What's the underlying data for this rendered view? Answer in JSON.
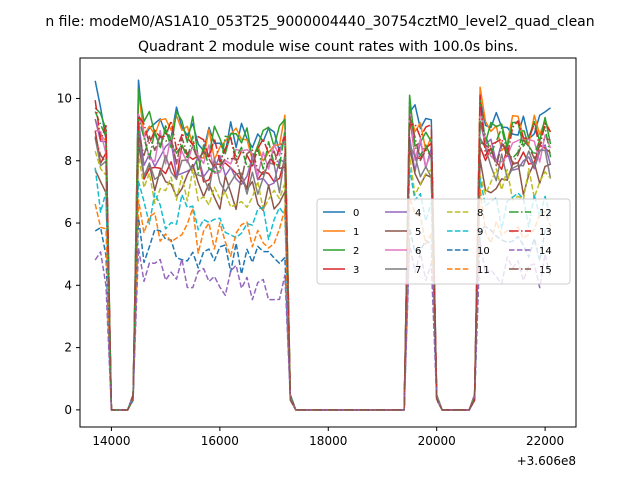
{
  "chart_data": {
    "type": "line",
    "suptitle": "n file: modeM0/AS1A10_053T25_9000004440_30754cztM0_level2_quad_clean",
    "title": "Quadrant 2 module wise count rates with 100.0s bins.",
    "xlabel": "",
    "ylabel": "",
    "x_offset_label": "+3.606e8",
    "xlim": [
      13420,
      22570
    ],
    "ylim": [
      -0.55,
      11.3
    ],
    "xticks": [
      14000,
      16000,
      18000,
      20000,
      22000
    ],
    "xtick_labels": [
      "14000",
      "16000",
      "18000",
      "20000",
      "22000"
    ],
    "yticks": [
      0,
      2,
      4,
      6,
      8,
      10
    ],
    "ytick_labels": [
      "0",
      "2",
      "4",
      "6",
      "8",
      "10"
    ],
    "grid": false,
    "legend": {
      "placement": "center-right",
      "columns": 4
    },
    "segments": [
      {
        "start": 13700,
        "end": 13900
      },
      {
        "start": 14500,
        "end": 17200
      },
      {
        "start": 19500,
        "end": 19900
      },
      {
        "start": 20800,
        "end": 22100
      }
    ],
    "zero_ranges": [
      [
        14000,
        14300
      ],
      [
        17400,
        19400
      ],
      [
        20100,
        20600
      ]
    ],
    "series": [
      {
        "name": "0",
        "color": "#1f77b4",
        "dash": "solid",
        "level": 9.2
      },
      {
        "name": "1",
        "color": "#ff7f0e",
        "dash": "solid",
        "level": 8.9
      },
      {
        "name": "2",
        "color": "#2ca02c",
        "dash": "solid",
        "level": 9.0
      },
      {
        "name": "3",
        "color": "#d62728",
        "dash": "solid",
        "level": 8.0
      },
      {
        "name": "4",
        "color": "#9467bd",
        "dash": "solid",
        "level": 8.1
      },
      {
        "name": "5",
        "color": "#8c564b",
        "dash": "solid",
        "level": 7.4
      },
      {
        "name": "6",
        "color": "#e377c2",
        "dash": "solid",
        "level": 8.4
      },
      {
        "name": "7",
        "color": "#7f7f7f",
        "dash": "solid",
        "level": 7.9
      },
      {
        "name": "8",
        "color": "#bcbd22",
        "dash": "dashed",
        "level": 7.2
      },
      {
        "name": "9",
        "color": "#17becf",
        "dash": "dashed",
        "level": 6.4
      },
      {
        "name": "10",
        "color": "#1f77b4",
        "dash": "dashed",
        "level": 5.3
      },
      {
        "name": "11",
        "color": "#ff7f0e",
        "dash": "dashed",
        "level": 5.9
      },
      {
        "name": "12",
        "color": "#2ca02c",
        "dash": "dashdot",
        "level": 8.6
      },
      {
        "name": "13",
        "color": "#d62728",
        "dash": "dashdot",
        "level": 8.7
      },
      {
        "name": "14",
        "color": "#9467bd",
        "dash": "dashed",
        "level": 4.5
      },
      {
        "name": "15",
        "color": "#8c564b",
        "dash": "dashdot",
        "level": 8.2
      }
    ]
  }
}
